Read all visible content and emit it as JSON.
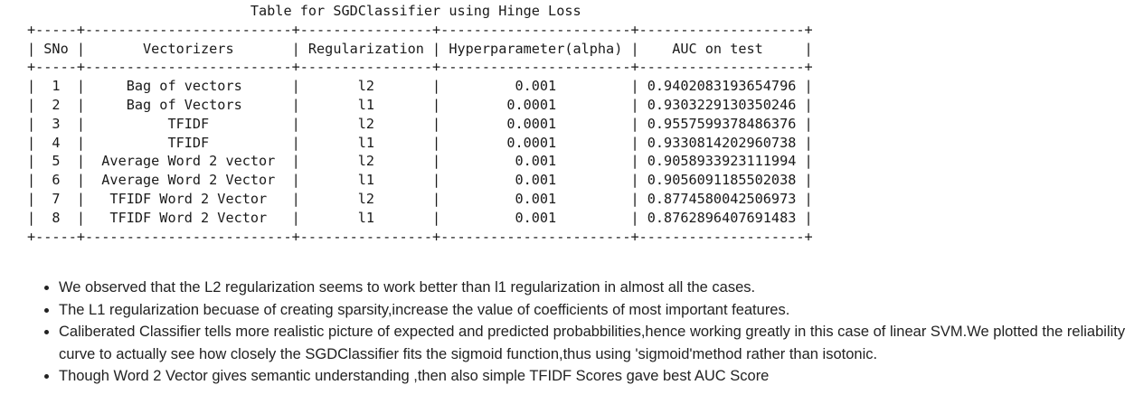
{
  "table": {
    "title": "Table for SGDClassifier using Hinge Loss",
    "headers": [
      "SNo",
      "Vectorizers",
      "Regularization",
      "Hyperparameter(alpha)",
      "AUC on test"
    ],
    "rows": [
      [
        "1",
        "Bag of vectors",
        "l2",
        "0.001",
        "0.9402083193654796"
      ],
      [
        "2",
        "Bag of Vectors",
        "l1",
        "0.0001",
        "0.9303229130350246"
      ],
      [
        "3",
        "TFIDF",
        "l2",
        "0.0001",
        "0.9557599378486376"
      ],
      [
        "4",
        "TFIDF",
        "l1",
        "0.0001",
        "0.9330814202960738"
      ],
      [
        "5",
        "Average Word 2 vector",
        "l2",
        "0.001",
        "0.9058933923111994"
      ],
      [
        "6",
        "Average Word 2 Vector",
        "l1",
        "0.001",
        "0.9056091185502038"
      ],
      [
        "7",
        "TFIDF Word 2 Vector",
        "l2",
        "0.001",
        "0.8774580042506973"
      ],
      [
        "8",
        "TFIDF Word 2 Vector",
        "l1",
        "0.001",
        "0.8762896407691483"
      ]
    ]
  },
  "notes": [
    "We observed that the L2 regularization seems to work better than l1 regularization in almost all the cases.",
    "The L1 regularization becuase of creating sparsity,increase the value of coefficients of most important features.",
    "Caliberated Classifier tells more realistic picture of expected and predicted probabbilities,hence working greatly in this case of linear SVM.We plotted the reliability curve to actually see how closely the SGDClassifier fits the sigmoid function,thus using 'sigmoid'method rather than isotonic.",
    "Though Word 2 Vector gives semantic understanding ,then also simple TFIDF Scores gave best AUC Score"
  ]
}
